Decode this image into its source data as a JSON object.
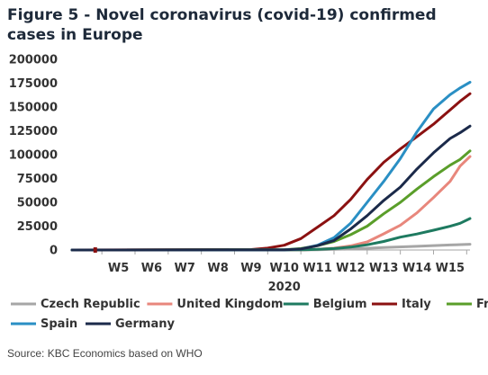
{
  "title": "Figure 5 - Novel coronavirus (covid-19) confirmed cases in Europe",
  "source": "Source: KBC Economics based on WHO",
  "chart_data": {
    "type": "line",
    "title": "Figure 5 - Novel coronavirus (covid-19) confirmed cases in Europe",
    "xlabel": "2020",
    "ylabel": "",
    "ylim": [
      0,
      200000
    ],
    "yticks": [
      0,
      25000,
      50000,
      75000,
      100000,
      125000,
      150000,
      175000,
      200000
    ],
    "xticks": [
      "W5",
      "W6",
      "W7",
      "W8",
      "W9",
      "W10",
      "W11",
      "W12",
      "W13",
      "W14",
      "W15"
    ],
    "xlim": [
      3.6,
      15.6
    ],
    "grid": false,
    "legend_position": "bottom",
    "series": [
      {
        "name": "Czech Republic",
        "color": "#a6a6a6",
        "x": [
          3.6,
          10.0,
          11.0,
          12.0,
          13.0,
          14.0,
          15.0,
          15.6
        ],
        "y": [
          0,
          0,
          300,
          1000,
          2600,
          3900,
          5300,
          6000
        ]
      },
      {
        "name": "United Kingdom",
        "color": "#e8877c",
        "x": [
          3.6,
          10.0,
          10.6,
          11.0,
          11.5,
          12.0,
          12.5,
          13.0,
          13.5,
          14.0,
          14.5,
          15.0,
          15.3,
          15.6
        ],
        "y": [
          0,
          100,
          300,
          800,
          1900,
          4300,
          8500,
          17000,
          26000,
          39000,
          55000,
          72000,
          88000,
          98000
        ]
      },
      {
        "name": "Belgium",
        "color": "#1e7a60",
        "x": [
          3.6,
          10.0,
          10.6,
          11.0,
          11.5,
          12.0,
          12.5,
          13.0,
          13.5,
          14.0,
          14.5,
          15.0,
          15.3,
          15.6
        ],
        "y": [
          0,
          50,
          200,
          700,
          1500,
          3000,
          5500,
          9000,
          13500,
          16800,
          20800,
          24900,
          28000,
          33000
        ]
      },
      {
        "name": "Italy",
        "color": "#8b1111",
        "x": [
          3.6,
          9.0,
          9.5,
          10.0,
          10.5,
          11.0,
          11.5,
          12.0,
          12.5,
          13.0,
          13.5,
          14.0,
          14.5,
          15.0,
          15.3,
          15.6
        ],
        "y": [
          0,
          500,
          2000,
          5000,
          12000,
          24000,
          36000,
          53000,
          74000,
          92000,
          106000,
          119000,
          132000,
          147000,
          156000,
          164000
        ]
      },
      {
        "name": "France",
        "color": "#5a9e2a",
        "x": [
          3.6,
          10.0,
          10.5,
          11.0,
          11.5,
          12.0,
          12.5,
          13.0,
          13.5,
          14.0,
          14.5,
          15.0,
          15.3,
          15.6
        ],
        "y": [
          0,
          300,
          1500,
          4500,
          9000,
          16000,
          25000,
          38000,
          50000,
          64000,
          77000,
          89000,
          95000,
          104000
        ]
      },
      {
        "name": "Spain",
        "color": "#2a8fc4",
        "x": [
          3.6,
          10.0,
          10.5,
          11.0,
          11.5,
          12.0,
          12.5,
          13.0,
          13.5,
          14.0,
          14.5,
          15.0,
          15.3,
          15.6
        ],
        "y": [
          0,
          100,
          1000,
          5000,
          13000,
          28000,
          50000,
          72000,
          96000,
          124000,
          148000,
          163000,
          170000,
          176000
        ]
      },
      {
        "name": "Germany",
        "color": "#1b2a4a",
        "x": [
          3.6,
          10.0,
          10.5,
          11.0,
          11.5,
          12.0,
          12.5,
          13.0,
          13.5,
          14.0,
          14.5,
          15.0,
          15.3,
          15.6
        ],
        "y": [
          0,
          100,
          1000,
          4500,
          10000,
          22000,
          36000,
          52000,
          66000,
          85000,
          102000,
          117000,
          123000,
          130000
        ]
      }
    ],
    "markers": [
      {
        "x": 4.3,
        "y": 0,
        "color": "#8b1111"
      }
    ]
  }
}
